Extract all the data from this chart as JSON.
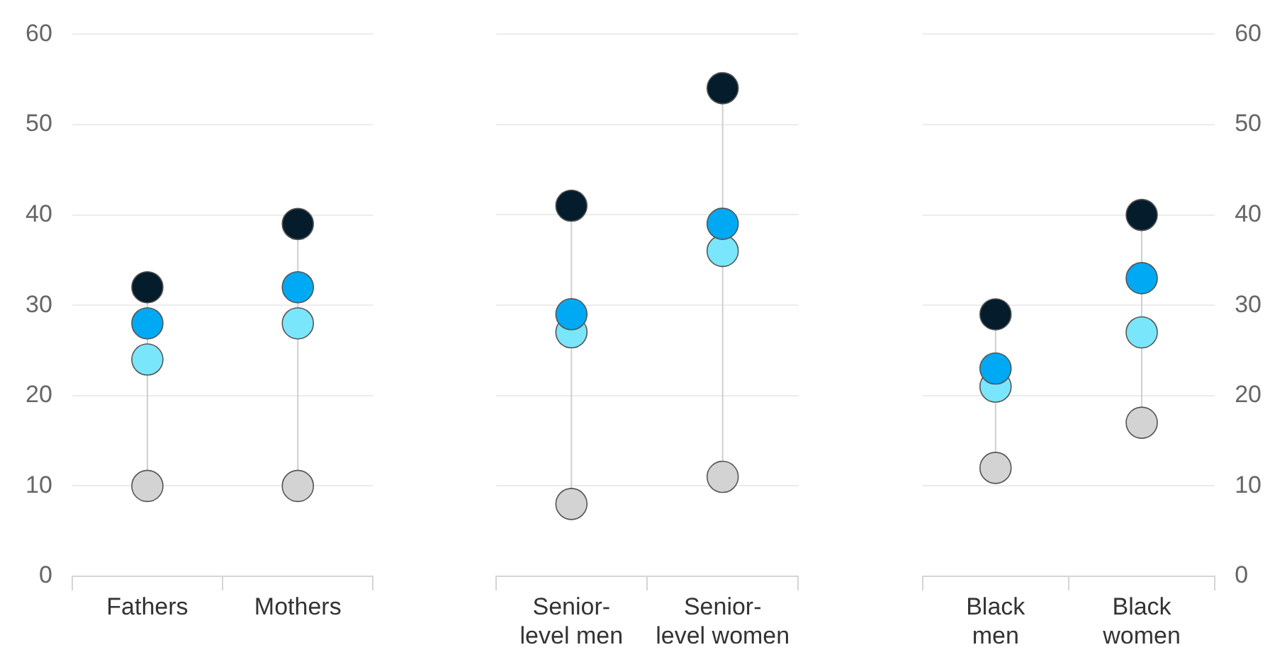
{
  "chart_data": [
    {
      "type": "scatter",
      "categories": [
        "Fathers",
        "Mothers"
      ],
      "series": [
        {
          "color": "#041c2c",
          "values": [
            32,
            39
          ]
        },
        {
          "color": "#00a9f4",
          "values": [
            28,
            32
          ]
        },
        {
          "color": "#7ae6fb",
          "values": [
            24,
            28
          ]
        },
        {
          "color": "#d3d3d3",
          "values": [
            10,
            10
          ]
        }
      ],
      "ylim": [
        0,
        60
      ],
      "yticks": [
        0,
        10,
        20,
        30,
        40,
        50,
        60
      ],
      "grid": "y",
      "marker": "circle"
    },
    {
      "type": "scatter",
      "categories": [
        "Senior-level men",
        "Senior-level women"
      ],
      "series": [
        {
          "color": "#041c2c",
          "values": [
            41,
            54
          ]
        },
        {
          "color": "#00a9f4",
          "values": [
            29,
            39
          ]
        },
        {
          "color": "#7ae6fb",
          "values": [
            27,
            36
          ]
        },
        {
          "color": "#d3d3d3",
          "values": [
            8,
            11
          ]
        }
      ],
      "ylim": [
        0,
        60
      ],
      "yticks": [
        0,
        10,
        20,
        30,
        40,
        50,
        60
      ],
      "grid": "y",
      "marker": "circle",
      "tick_labels": "x"
    },
    {
      "type": "scatter",
      "categories": [
        "Black men",
        "Black women"
      ],
      "series": [
        {
          "color": "#041c2c",
          "values": [
            29,
            40
          ]
        },
        {
          "color": "#00a9f4",
          "values": [
            23,
            33
          ]
        },
        {
          "color": "#7ae6fb",
          "values": [
            21,
            27
          ]
        },
        {
          "color": "#d3d3d3",
          "values": [
            12,
            17
          ]
        }
      ],
      "ylim": [
        0,
        60
      ],
      "yticks": [
        0,
        10,
        20,
        30,
        40,
        50,
        60
      ],
      "grid": "y",
      "marker": "circle"
    }
  ]
}
